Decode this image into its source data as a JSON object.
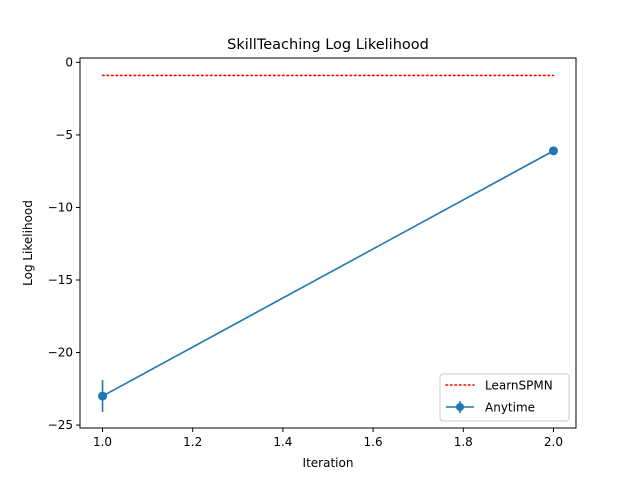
{
  "chart_data": {
    "type": "line",
    "title": "SkillTeaching Log Likelihood",
    "xlabel": "Iteration",
    "ylabel": "Log Likelihood",
    "xlim": [
      0.95,
      2.05
    ],
    "ylim": [
      -25.2,
      0.3
    ],
    "x_ticks": [
      1.0,
      1.2,
      1.4,
      1.6,
      1.8,
      2.0
    ],
    "x_tick_labels": [
      "1.0",
      "1.2",
      "1.4",
      "1.6",
      "1.8",
      "2.0"
    ],
    "y_ticks": [
      0,
      -5,
      -10,
      -15,
      -20,
      -25
    ],
    "y_tick_labels": [
      "0",
      "−5",
      "−10",
      "−15",
      "−20",
      "−25"
    ],
    "grid": false,
    "legend_position": "lower-right",
    "series": [
      {
        "name": "LearnSPMN",
        "style": "dotted",
        "color": "#ff0000",
        "x": [
          1.0,
          2.0
        ],
        "y": [
          -0.9,
          -0.9
        ]
      },
      {
        "name": "Anytime",
        "style": "solid-markers",
        "color": "#1f77b4",
        "x": [
          1.0,
          2.0
        ],
        "y": [
          -23.0,
          -6.1
        ],
        "yerr": [
          1.1,
          0.0
        ]
      }
    ]
  }
}
